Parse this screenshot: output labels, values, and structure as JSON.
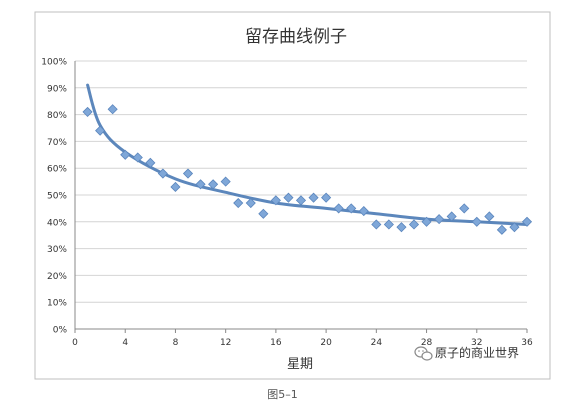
{
  "chart_data": {
    "type": "scatter",
    "title": "留存曲线例子",
    "xlabel": "星期",
    "ylabel": "",
    "xlim": [
      0,
      36
    ],
    "ylim": [
      0,
      100
    ],
    "x_ticks": [
      0,
      4,
      8,
      12,
      16,
      20,
      24,
      28,
      32,
      36
    ],
    "x_tick_labels": [
      "0",
      "4",
      "8",
      "12",
      "16",
      "20",
      "24",
      "28",
      "32",
      "36"
    ],
    "y_ticks": [
      0,
      10,
      20,
      30,
      40,
      50,
      60,
      70,
      80,
      90,
      100
    ],
    "y_tick_labels": [
      "0%",
      "10%",
      "20%",
      "30%",
      "40%",
      "50%",
      "60%",
      "70%",
      "80%",
      "90%",
      "100%"
    ],
    "grid": true,
    "legend": "none",
    "series": [
      {
        "marker": "diamond",
        "color": "#7fa7d8",
        "points": [
          {
            "x": 1,
            "y": 81
          },
          {
            "x": 2,
            "y": 74
          },
          {
            "x": 3,
            "y": 82
          },
          {
            "x": 4,
            "y": 65
          },
          {
            "x": 5,
            "y": 64
          },
          {
            "x": 6,
            "y": 62
          },
          {
            "x": 7,
            "y": 58
          },
          {
            "x": 8,
            "y": 53
          },
          {
            "x": 9,
            "y": 58
          },
          {
            "x": 10,
            "y": 54
          },
          {
            "x": 11,
            "y": 54
          },
          {
            "x": 12,
            "y": 55
          },
          {
            "x": 13,
            "y": 47
          },
          {
            "x": 14,
            "y": 47
          },
          {
            "x": 15,
            "y": 43
          },
          {
            "x": 16,
            "y": 48
          },
          {
            "x": 17,
            "y": 49
          },
          {
            "x": 18,
            "y": 48
          },
          {
            "x": 19,
            "y": 49
          },
          {
            "x": 20,
            "y": 49
          },
          {
            "x": 21,
            "y": 45
          },
          {
            "x": 22,
            "y": 45
          },
          {
            "x": 23,
            "y": 44
          },
          {
            "x": 24,
            "y": 39
          },
          {
            "x": 25,
            "y": 39
          },
          {
            "x": 26,
            "y": 38
          },
          {
            "x": 27,
            "y": 39
          },
          {
            "x": 28,
            "y": 40
          },
          {
            "x": 29,
            "y": 41
          },
          {
            "x": 30,
            "y": 42
          },
          {
            "x": 31,
            "y": 45
          },
          {
            "x": 32,
            "y": 40
          },
          {
            "x": 33,
            "y": 42
          },
          {
            "x": 34,
            "y": 37
          },
          {
            "x": 35,
            "y": 38
          },
          {
            "x": 36,
            "y": 40
          }
        ]
      }
    ],
    "trendline": {
      "type": "logarithmic",
      "color": "#4a7ab5",
      "x_start": 1,
      "x_end": 36,
      "points": [
        {
          "x": 1,
          "y": 91
        },
        {
          "x": 2,
          "y": 76
        },
        {
          "x": 4,
          "y": 66
        },
        {
          "x": 8,
          "y": 56
        },
        {
          "x": 12,
          "y": 51
        },
        {
          "x": 16,
          "y": 47
        },
        {
          "x": 20,
          "y": 45
        },
        {
          "x": 24,
          "y": 43
        },
        {
          "x": 28,
          "y": 41
        },
        {
          "x": 32,
          "y": 40
        },
        {
          "x": 36,
          "y": 39
        }
      ]
    }
  },
  "watermark": {
    "icon": "wechat-icon",
    "text": "原子的商业世界"
  },
  "caption": "图5–1"
}
